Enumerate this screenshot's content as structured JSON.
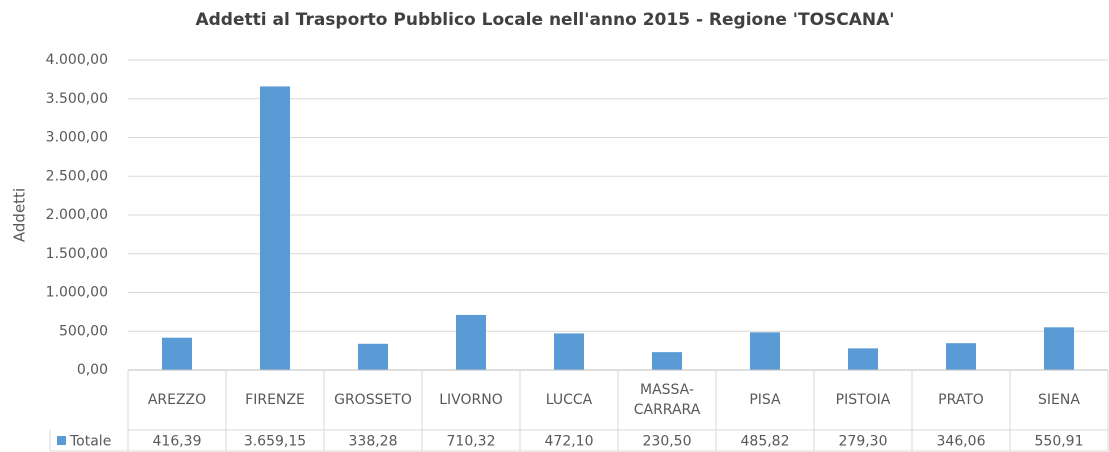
{
  "chart_data": {
    "type": "bar",
    "title": "Addetti al Trasporto Pubblico Locale nell'anno 2015 - Regione 'TOSCANA'",
    "y_label": "Addetti",
    "categories": [
      "AREZZO",
      "FIRENZE",
      "GROSSETO",
      "LIVORNO",
      "LUCCA",
      "MASSA-CARRARA",
      "PISA",
      "PISTOIA",
      "PRATO",
      "SIENA"
    ],
    "series": [
      {
        "name": "Totale",
        "color": "#5b9bd5",
        "values": [
          416.39,
          3659.15,
          338.28,
          710.32,
          472.1,
          230.5,
          485.82,
          279.3,
          346.06,
          550.91
        ],
        "value_labels": [
          "416,39",
          "3.659,15",
          "338,28",
          "710,32",
          "472,10",
          "230,50",
          "485,82",
          "279,30",
          "346,06",
          "550,91"
        ]
      }
    ],
    "ylim": [
      0,
      4000
    ],
    "yticks": [
      {
        "value": 0,
        "label": "0,00"
      },
      {
        "value": 500,
        "label": "500,00"
      },
      {
        "value": 1000,
        "label": "1.000,00"
      },
      {
        "value": 1500,
        "label": "1.500,00"
      },
      {
        "value": 2000,
        "label": "2.000,00"
      },
      {
        "value": 2500,
        "label": "2.500,00"
      },
      {
        "value": 3000,
        "label": "3.000,00"
      },
      {
        "value": 3500,
        "label": "3.500,00"
      },
      {
        "value": 4000,
        "label": "4.000,00"
      }
    ],
    "grid": true,
    "data_table": true
  }
}
